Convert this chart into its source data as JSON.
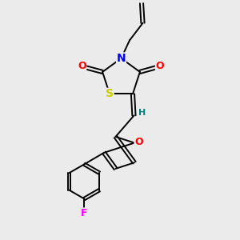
{
  "bg_color": "#ebebeb",
  "bond_color": "#000000",
  "atom_colors": {
    "O": "#ff0000",
    "N": "#0000ff",
    "S": "#cccc00",
    "F": "#ff00ff",
    "H": "#008080",
    "C": "#000000"
  },
  "fig_size": [
    3.0,
    3.0
  ],
  "dpi": 100
}
